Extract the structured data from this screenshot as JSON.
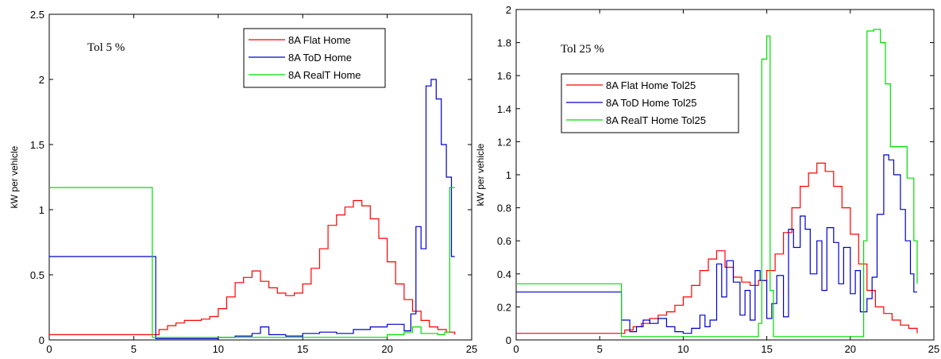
{
  "chart_data": [
    {
      "type": "line",
      "step": true,
      "annotation": "Tol 5 %",
      "ylabel": "kW per vehicle",
      "xlim": [
        0,
        25
      ],
      "ylim": [
        0,
        2.5
      ],
      "xticks": [
        0,
        5,
        10,
        15,
        20,
        25
      ],
      "yticks": [
        0,
        0.5,
        1,
        1.5,
        2,
        2.5
      ],
      "legend_position": "top-right",
      "series": [
        {
          "name": "8A Flat Home",
          "color": "#ff0000",
          "points": [
            [
              0,
              0.04
            ],
            [
              5,
              0.04
            ],
            [
              6,
              0.04
            ],
            [
              6.5,
              0.08
            ],
            [
              7,
              0.11
            ],
            [
              7.5,
              0.13
            ],
            [
              8,
              0.15
            ],
            [
              9,
              0.16
            ],
            [
              9.5,
              0.18
            ],
            [
              10,
              0.24
            ],
            [
              10.5,
              0.33
            ],
            [
              11,
              0.44
            ],
            [
              11.5,
              0.48
            ],
            [
              12,
              0.53
            ],
            [
              12.5,
              0.45
            ],
            [
              13,
              0.4
            ],
            [
              13.5,
              0.36
            ],
            [
              14,
              0.34
            ],
            [
              14.5,
              0.36
            ],
            [
              15,
              0.43
            ],
            [
              15.5,
              0.55
            ],
            [
              16,
              0.7
            ],
            [
              16.5,
              0.88
            ],
            [
              17,
              0.96
            ],
            [
              17.5,
              1.02
            ],
            [
              18,
              1.07
            ],
            [
              18.5,
              1.03
            ],
            [
              19,
              0.93
            ],
            [
              19.5,
              0.78
            ],
            [
              20,
              0.6
            ],
            [
              20.5,
              0.43
            ],
            [
              21,
              0.31
            ],
            [
              21.5,
              0.22
            ],
            [
              22,
              0.15
            ],
            [
              22.5,
              0.1
            ],
            [
              23,
              0.08
            ],
            [
              23.5,
              0.06
            ],
            [
              24,
              0.04
            ]
          ]
        },
        {
          "name": "8A ToD Home",
          "color": "#0000cc",
          "points": [
            [
              0,
              0.64
            ],
            [
              6.2,
              0.64
            ],
            [
              6.3,
              0.01
            ],
            [
              9,
              0.01
            ],
            [
              10,
              0.02
            ],
            [
              11,
              0.03
            ],
            [
              12,
              0.05
            ],
            [
              12.5,
              0.1
            ],
            [
              13,
              0.04
            ],
            [
              14,
              0.03
            ],
            [
              15,
              0.05
            ],
            [
              16,
              0.06
            ],
            [
              17,
              0.05
            ],
            [
              18,
              0.08
            ],
            [
              19,
              0.1
            ],
            [
              20,
              0.12
            ],
            [
              21,
              0.07
            ],
            [
              21.4,
              0.2
            ],
            [
              21.7,
              0.87
            ],
            [
              22,
              0.7
            ],
            [
              22.3,
              1.95
            ],
            [
              22.6,
              2.0
            ],
            [
              22.9,
              1.85
            ],
            [
              23.2,
              1.5
            ],
            [
              23.5,
              1.25
            ],
            [
              23.8,
              0.64
            ],
            [
              24,
              0.64
            ]
          ]
        },
        {
          "name": "8A RealT Home",
          "color": "#00dd00",
          "points": [
            [
              0,
              1.17
            ],
            [
              6,
              1.17
            ],
            [
              6.1,
              0.02
            ],
            [
              14,
              0.02
            ],
            [
              20,
              0.04
            ],
            [
              21,
              0.06
            ],
            [
              21.5,
              0.1
            ],
            [
              22,
              0.05
            ],
            [
              23,
              0.04
            ],
            [
              23.4,
              0.06
            ],
            [
              23.7,
              1.17
            ],
            [
              24,
              1.17
            ]
          ]
        }
      ]
    },
    {
      "type": "line",
      "step": true,
      "annotation": "Tol 25 %",
      "ylabel": "kW per vehicle",
      "xlim": [
        0,
        25
      ],
      "ylim": [
        0,
        2
      ],
      "xticks": [
        0,
        5,
        10,
        15,
        20,
        25
      ],
      "yticks": [
        0,
        0.2,
        0.4,
        0.6,
        0.8,
        1,
        1.2,
        1.4,
        1.6,
        1.8,
        2
      ],
      "legend_position": "upper-left",
      "series": [
        {
          "name": "8A Flat Home Tol25",
          "color": "#ff0000",
          "points": [
            [
              0,
              0.04
            ],
            [
              5,
              0.04
            ],
            [
              6,
              0.04
            ],
            [
              6.5,
              0.06
            ],
            [
              7,
              0.08
            ],
            [
              7.5,
              0.1
            ],
            [
              8,
              0.13
            ],
            [
              8.5,
              0.15
            ],
            [
              9,
              0.17
            ],
            [
              9.5,
              0.21
            ],
            [
              10,
              0.26
            ],
            [
              10.5,
              0.33
            ],
            [
              11,
              0.42
            ],
            [
              11.5,
              0.49
            ],
            [
              12,
              0.54
            ],
            [
              12.5,
              0.44
            ],
            [
              13,
              0.38
            ],
            [
              13.5,
              0.35
            ],
            [
              14,
              0.33
            ],
            [
              14.5,
              0.36
            ],
            [
              15,
              0.42
            ],
            [
              15.5,
              0.52
            ],
            [
              16,
              0.65
            ],
            [
              16.5,
              0.8
            ],
            [
              17,
              0.93
            ],
            [
              17.5,
              1.01
            ],
            [
              18,
              1.07
            ],
            [
              18.5,
              1.02
            ],
            [
              19,
              0.93
            ],
            [
              19.5,
              0.8
            ],
            [
              20,
              0.64
            ],
            [
              20.5,
              0.46
            ],
            [
              21,
              0.3
            ],
            [
              21.5,
              0.2
            ],
            [
              22,
              0.16
            ],
            [
              22.5,
              0.12
            ],
            [
              23,
              0.09
            ],
            [
              23.5,
              0.07
            ],
            [
              24,
              0.04
            ]
          ]
        },
        {
          "name": "8A ToD Home Tol25",
          "color": "#0000cc",
          "points": [
            [
              0,
              0.29
            ],
            [
              6.2,
              0.29
            ],
            [
              6.3,
              0.12
            ],
            [
              6.8,
              0.05
            ],
            [
              7.2,
              0.08
            ],
            [
              7.6,
              0.12
            ],
            [
              8,
              0.1
            ],
            [
              8.5,
              0.13
            ],
            [
              9,
              0.08
            ],
            [
              9.5,
              0.05
            ],
            [
              10,
              0.04
            ],
            [
              10.5,
              0.07
            ],
            [
              11,
              0.15
            ],
            [
              11.3,
              0.08
            ],
            [
              11.6,
              0.12
            ],
            [
              12,
              0.46
            ],
            [
              12.3,
              0.26
            ],
            [
              12.6,
              0.48
            ],
            [
              13,
              0.35
            ],
            [
              13.4,
              0.15
            ],
            [
              13.7,
              0.3
            ],
            [
              14,
              0.12
            ],
            [
              14.3,
              0.42
            ],
            [
              14.6,
              0.36
            ],
            [
              15,
              0.13
            ],
            [
              15.3,
              0.22
            ],
            [
              15.6,
              0.39
            ],
            [
              16,
              0.14
            ],
            [
              16.3,
              0.67
            ],
            [
              16.6,
              0.56
            ],
            [
              17,
              0.75
            ],
            [
              17.3,
              0.67
            ],
            [
              17.6,
              0.4
            ],
            [
              18,
              0.6
            ],
            [
              18.3,
              0.3
            ],
            [
              18.6,
              0.68
            ],
            [
              19,
              0.59
            ],
            [
              19.3,
              0.34
            ],
            [
              19.6,
              0.56
            ],
            [
              20,
              0.28
            ],
            [
              20.3,
              0.42
            ],
            [
              20.6,
              0.17
            ],
            [
              21,
              0.25
            ],
            [
              21.3,
              0.38
            ],
            [
              21.6,
              0.76
            ],
            [
              22,
              1.12
            ],
            [
              22.3,
              1.09
            ],
            [
              22.6,
              1.0
            ],
            [
              23,
              0.79
            ],
            [
              23.3,
              0.6
            ],
            [
              23.6,
              0.4
            ],
            [
              23.8,
              0.29
            ],
            [
              24,
              0.29
            ]
          ]
        },
        {
          "name": "8A RealT Home Tol25",
          "color": "#00dd00",
          "points": [
            [
              0,
              0.34
            ],
            [
              6.2,
              0.34
            ],
            [
              6.3,
              0.02
            ],
            [
              14,
              0.02
            ],
            [
              14.5,
              0.1
            ],
            [
              14.7,
              1.7
            ],
            [
              15,
              1.84
            ],
            [
              15.2,
              0.3
            ],
            [
              15.4,
              0.02
            ],
            [
              20.5,
              0.02
            ],
            [
              20.8,
              0.6
            ],
            [
              21,
              1.87
            ],
            [
              21.4,
              1.88
            ],
            [
              21.8,
              1.8
            ],
            [
              22.1,
              1.55
            ],
            [
              22.4,
              1.17
            ],
            [
              23,
              1.17
            ],
            [
              23.4,
              0.98
            ],
            [
              23.8,
              0.6
            ],
            [
              24,
              0.34
            ]
          ]
        }
      ]
    }
  ]
}
